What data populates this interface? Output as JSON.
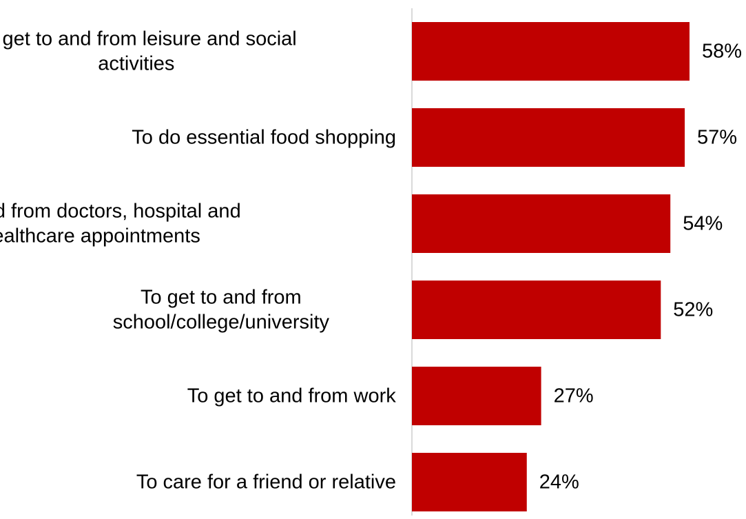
{
  "chart_data": {
    "type": "bar",
    "orientation": "horizontal",
    "categories": [
      [
        "To get to and from leisure and social",
        "activities"
      ],
      [
        "To do essential food shopping"
      ],
      [
        "To get to and from doctors, hospital and",
        "other healthcare appointments"
      ],
      [
        "To get to and from",
        "school/college/university"
      ],
      [
        "To get to and from work"
      ],
      [
        "To care for a friend or relative"
      ]
    ],
    "values": [
      58,
      57,
      54,
      52,
      27,
      24
    ],
    "value_labels": [
      "58%",
      "57%",
      "54%",
      "52%",
      "27%",
      "24%"
    ],
    "unit": "%",
    "xlim": [
      0,
      60
    ],
    "grid": false,
    "legend": "none",
    "colors": {
      "bar": "#C00000",
      "axis": "#D9D9D9",
      "text": "#000000"
    }
  }
}
